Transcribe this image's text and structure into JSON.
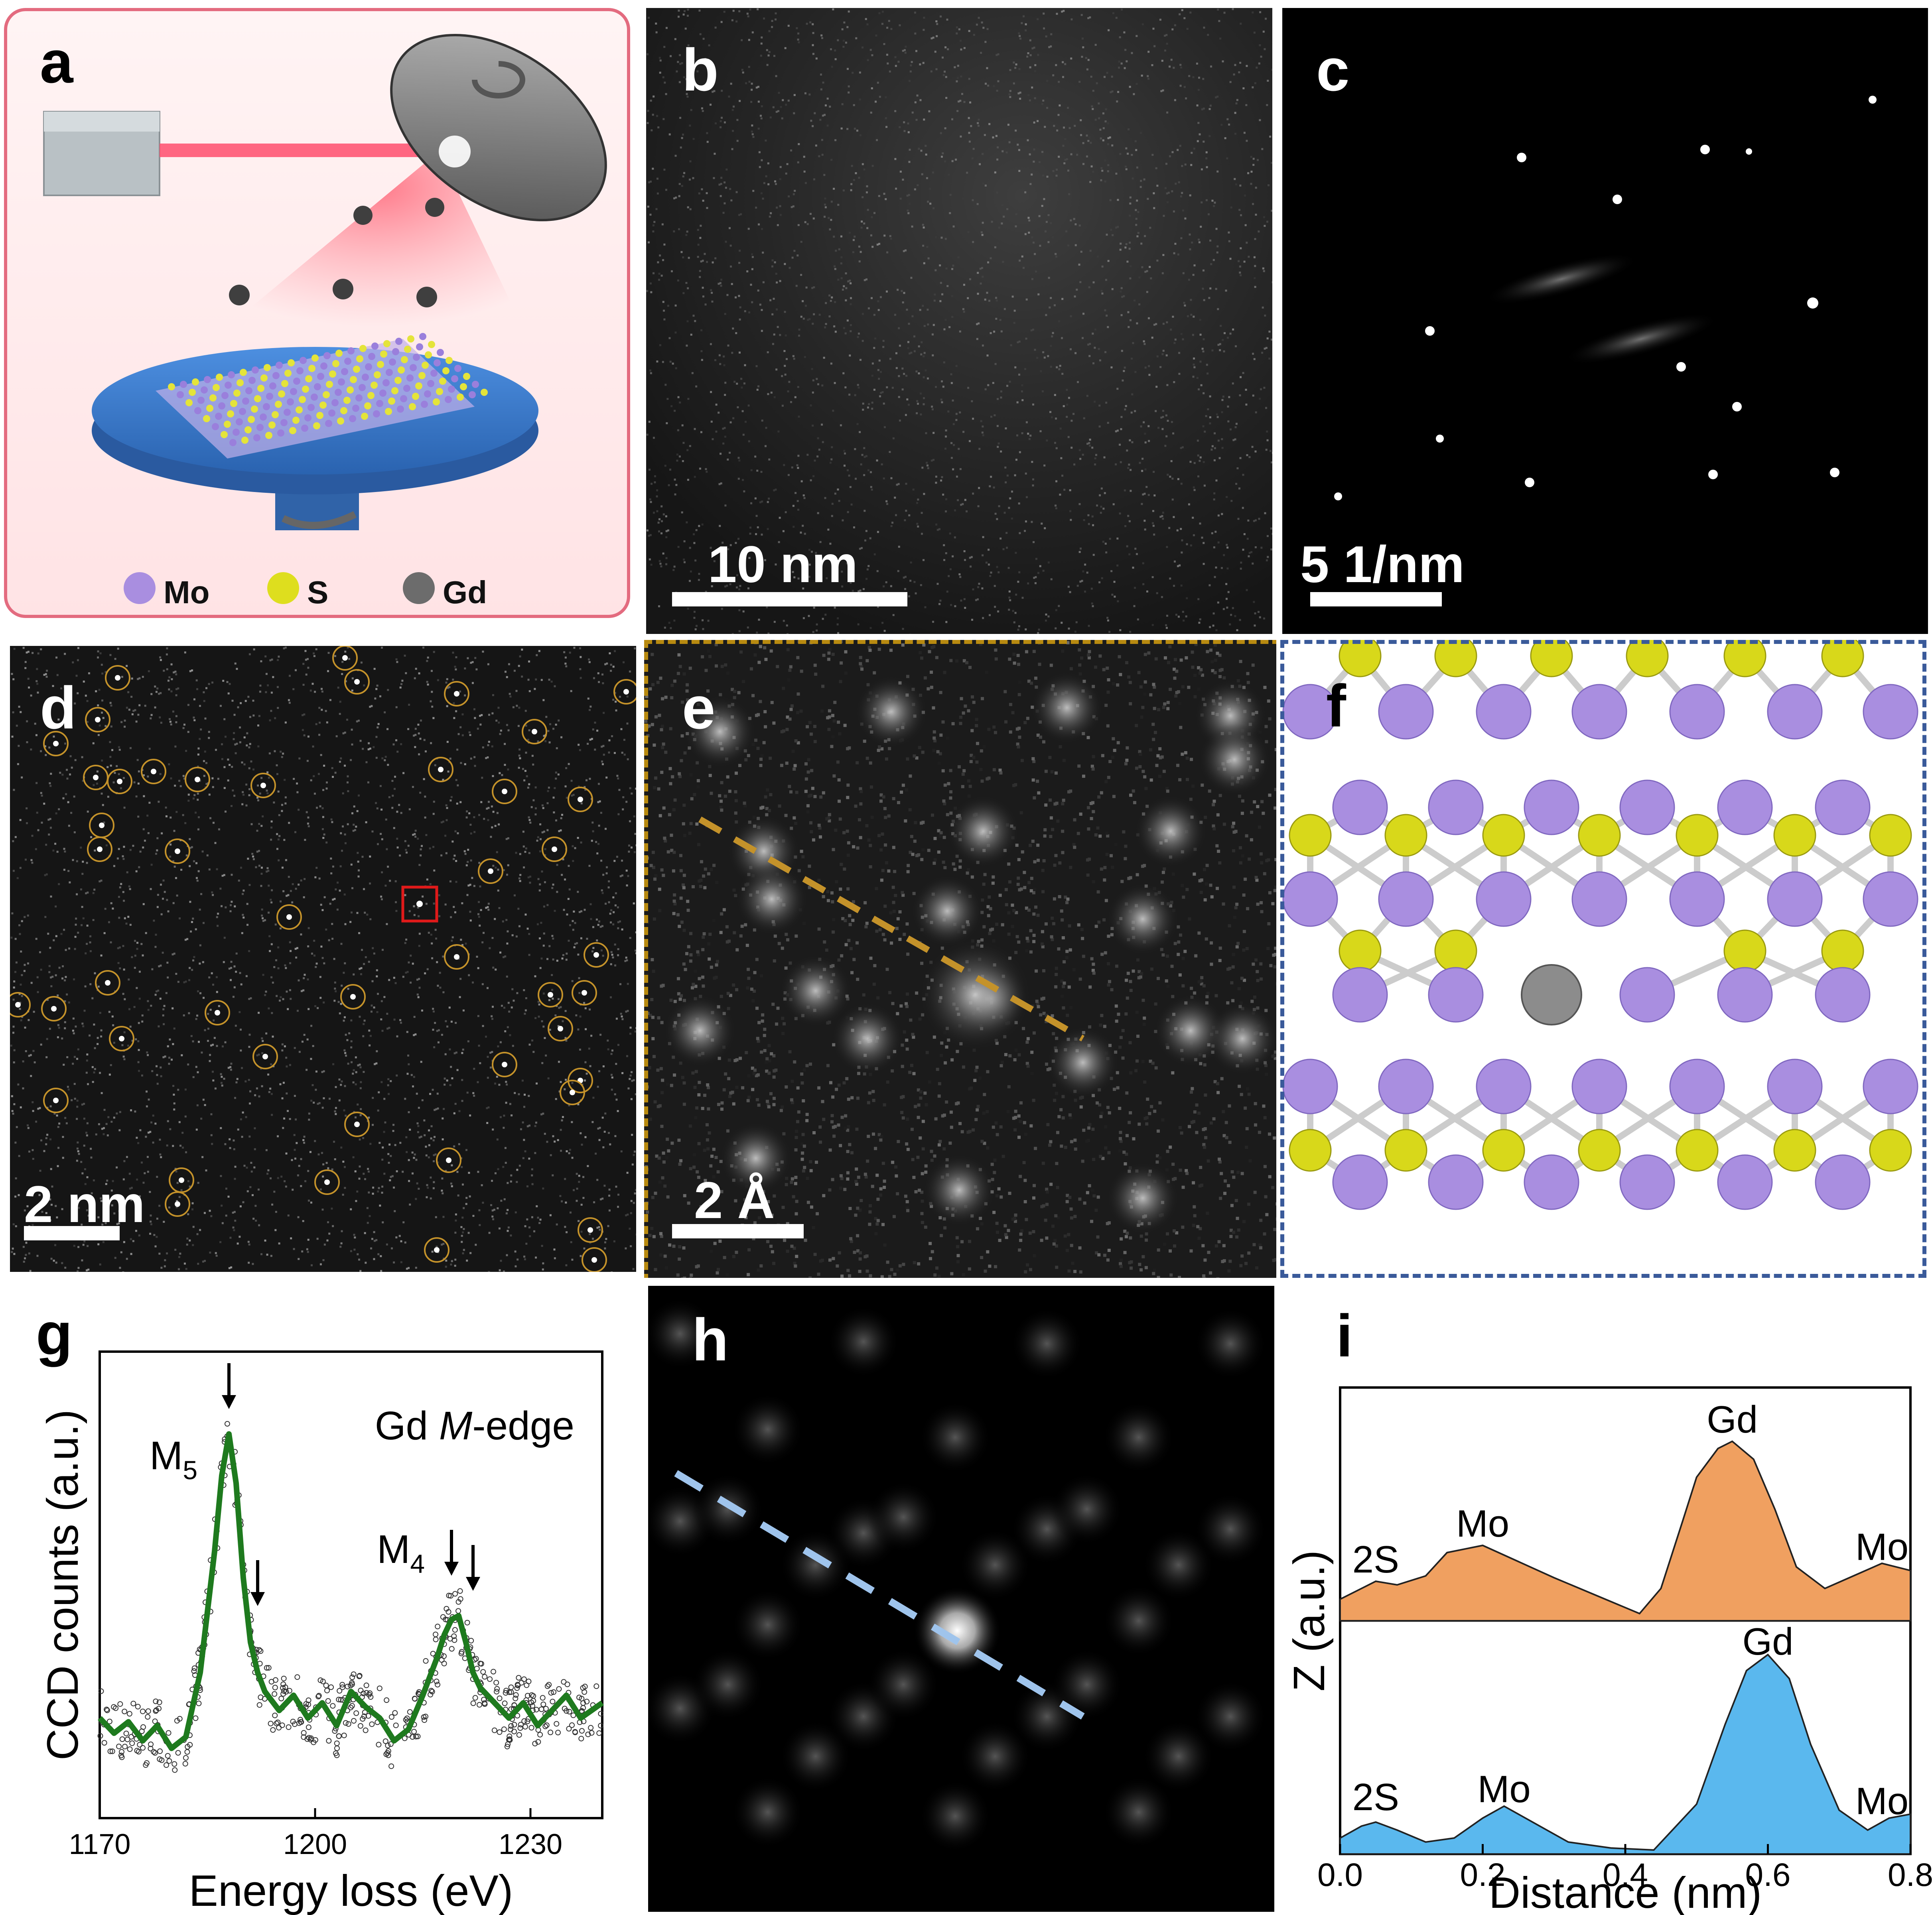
{
  "panels": {
    "a": {
      "label": "a",
      "legend": [
        {
          "symbol": "Mo",
          "color": "#a98ee0"
        },
        {
          "symbol": "S",
          "color": "#dede1e"
        },
        {
          "symbol": "Gd",
          "color": "#6c6c6c"
        }
      ]
    },
    "b": {
      "label": "b",
      "scale": "10 nm"
    },
    "c": {
      "label": "c",
      "scale": "5  1/nm"
    },
    "d": {
      "label": "d",
      "scale": "2 nm"
    },
    "e": {
      "label": "e",
      "scale": "2 Å"
    },
    "f": {
      "label": "f"
    },
    "g": {
      "label": "g"
    },
    "h": {
      "label": "h"
    },
    "i": {
      "label": "i"
    }
  },
  "chart_data": [
    {
      "panel": "g",
      "type": "line",
      "xlabel": "Energy loss (eV)",
      "ylabel": "CCD counts (a.u.)",
      "xlim": [
        1170,
        1240
      ],
      "xticks": [
        1170,
        1200,
        1230
      ],
      "annotations": [
        "Gd M-edge",
        "M5",
        "M4"
      ],
      "arrows_at_x": [
        1188,
        1192,
        1219,
        1222
      ],
      "series": [
        {
          "style": "line",
          "color": "#1e7a1e",
          "x": [
            1170,
            1172,
            1174,
            1176,
            1178,
            1180,
            1182,
            1184,
            1186,
            1187,
            1188,
            1189,
            1190,
            1191,
            1192,
            1193,
            1195,
            1197,
            1199,
            1201,
            1203,
            1205,
            1207,
            1209,
            1211,
            1213,
            1215,
            1217,
            1218,
            1219,
            1220,
            1221,
            1222,
            1223,
            1225,
            1227,
            1229,
            1231,
            1233,
            1235,
            1237,
            1240
          ],
          "y": [
            0.18,
            0.14,
            0.17,
            0.12,
            0.16,
            0.1,
            0.13,
            0.3,
            0.62,
            0.82,
            0.93,
            0.8,
            0.55,
            0.38,
            0.3,
            0.25,
            0.2,
            0.24,
            0.18,
            0.22,
            0.16,
            0.25,
            0.21,
            0.18,
            0.12,
            0.15,
            0.24,
            0.34,
            0.4,
            0.44,
            0.45,
            0.38,
            0.3,
            0.26,
            0.22,
            0.18,
            0.22,
            0.16,
            0.2,
            0.24,
            0.18,
            0.22
          ]
        }
      ]
    },
    {
      "panel": "i",
      "type": "area",
      "xlabel": "Distance (nm)",
      "ylabel": "Z (a.u.)",
      "xlim": [
        0.0,
        0.8
      ],
      "xticks": [
        "0.0",
        "0.2",
        "0.4",
        "0.6",
        "0.8"
      ],
      "series": [
        {
          "color": "#f0a060",
          "labels": [
            {
              "text": "2S",
              "x": 0.05
            },
            {
              "text": "Mo",
              "x": 0.2
            },
            {
              "text": "Gd",
              "x": 0.55
            },
            {
              "text": "Mo",
              "x": 0.76
            }
          ],
          "x": [
            0.0,
            0.03,
            0.05,
            0.08,
            0.12,
            0.15,
            0.2,
            0.25,
            0.3,
            0.36,
            0.42,
            0.45,
            0.48,
            0.5,
            0.53,
            0.55,
            0.58,
            0.61,
            0.64,
            0.68,
            0.72,
            0.76,
            0.8
          ],
          "y": [
            0.12,
            0.18,
            0.22,
            0.2,
            0.25,
            0.38,
            0.42,
            0.33,
            0.24,
            0.14,
            0.04,
            0.18,
            0.55,
            0.8,
            0.96,
            1.0,
            0.9,
            0.62,
            0.3,
            0.18,
            0.25,
            0.32,
            0.28
          ]
        },
        {
          "color": "#5ab8ee",
          "labels": [
            {
              "text": "2S",
              "x": 0.05
            },
            {
              "text": "Mo",
              "x": 0.23
            },
            {
              "text": "Gd",
              "x": 0.6
            },
            {
              "text": "Mo",
              "x": 0.76
            }
          ],
          "x": [
            0.0,
            0.03,
            0.05,
            0.08,
            0.12,
            0.16,
            0.2,
            0.23,
            0.27,
            0.32,
            0.38,
            0.44,
            0.5,
            0.54,
            0.57,
            0.6,
            0.63,
            0.66,
            0.7,
            0.74,
            0.77,
            0.8
          ],
          "y": [
            0.08,
            0.14,
            0.16,
            0.12,
            0.06,
            0.08,
            0.18,
            0.24,
            0.16,
            0.06,
            0.03,
            0.02,
            0.25,
            0.65,
            0.92,
            1.0,
            0.88,
            0.55,
            0.22,
            0.12,
            0.18,
            0.2
          ]
        }
      ]
    }
  ]
}
